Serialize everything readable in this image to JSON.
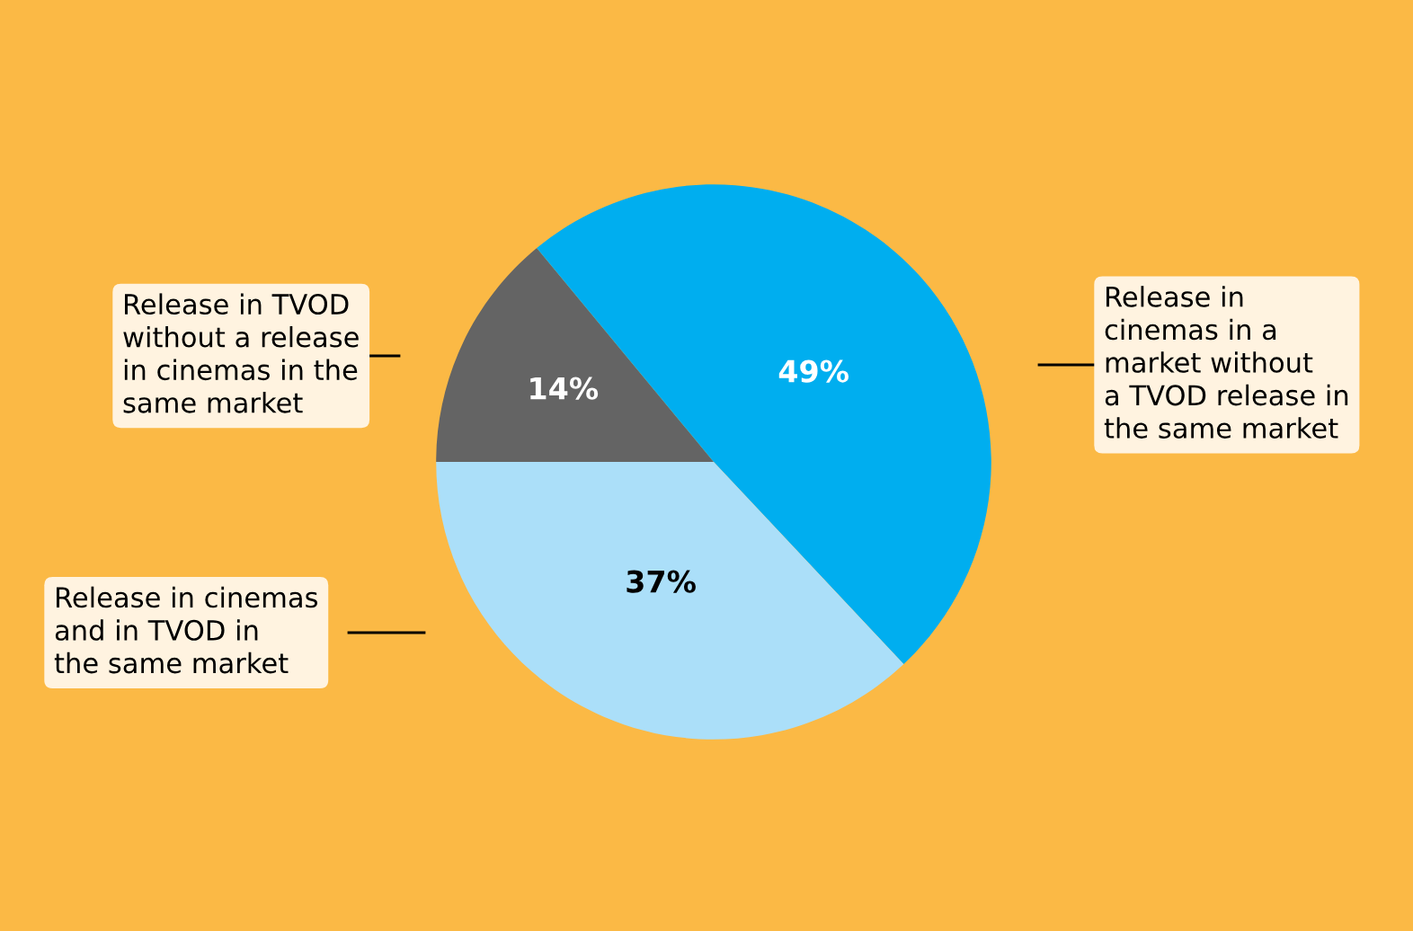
{
  "chart_data": {
    "type": "pie",
    "categories": [
      "Release in TVOD\nwithout a release\nin cinemas in the\nsame market",
      "Release in\ncinemas in a\nmarket without\na TVOD release in\nthe same market",
      "Release in cinemas\nand in TVOD in\nthe same market"
    ],
    "values": [
      14,
      49,
      37
    ],
    "colors": [
      "#646464",
      "#00aeef",
      "#abdff9"
    ],
    "value_labels": [
      "14%",
      "49%",
      "37%"
    ]
  }
}
